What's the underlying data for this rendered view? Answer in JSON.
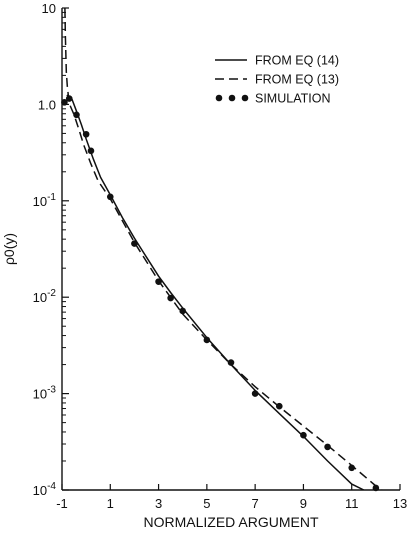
{
  "chart_data": {
    "type": "line",
    "xlabel": "NORMALIZED ARGUMENT",
    "ylabel": "ρ0(y)",
    "xlim": [
      -1,
      13
    ],
    "ylim": [
      0.0001,
      10
    ],
    "y_scale": "log",
    "grid": false,
    "legend_position": "top-right",
    "x_ticks": [
      {
        "value": -1,
        "label": "-1"
      },
      {
        "value": 1,
        "label": "1"
      },
      {
        "value": 3,
        "label": "3"
      },
      {
        "value": 5,
        "label": "5"
      },
      {
        "value": 7,
        "label": "7"
      },
      {
        "value": 9,
        "label": "9"
      },
      {
        "value": 11,
        "label": "11"
      },
      {
        "value": 13,
        "label": "13"
      }
    ],
    "y_ticks": [
      {
        "value": 10,
        "label": "10"
      },
      {
        "value": 1,
        "label": "1.0"
      },
      {
        "value": 0.1,
        "label": "10-1"
      },
      {
        "value": 0.01,
        "label": "10-2"
      },
      {
        "value": 0.001,
        "label": "10-3"
      },
      {
        "value": 0.0001,
        "label": "10-4"
      }
    ],
    "series": [
      {
        "name": "FROM EQ (14)",
        "style": "solid",
        "x": [
          -0.8,
          -0.6,
          -0.4,
          -0.2,
          0,
          0.3,
          0.6,
          1,
          1.5,
          2,
          2.5,
          3,
          3.5,
          4,
          5,
          6,
          7,
          8,
          9,
          10,
          11,
          11.5
        ],
        "y": [
          1.25,
          1.15,
          0.85,
          0.62,
          0.44,
          0.27,
          0.175,
          0.115,
          0.067,
          0.041,
          0.026,
          0.0165,
          0.0112,
          0.0077,
          0.0038,
          0.002,
          0.00108,
          0.00062,
          0.00036,
          0.0002,
          0.000115,
          0.0001
        ]
      },
      {
        "name": "FROM EQ (13)",
        "style": "dashed",
        "x": [
          -0.88,
          -0.86,
          -0.84,
          -0.82,
          -0.78,
          -0.72,
          -0.65,
          -0.5,
          -0.3,
          -0.1,
          0.2,
          0.5,
          1,
          1.5,
          2,
          3,
          4,
          5,
          6,
          7,
          8,
          9,
          10,
          11,
          12,
          12.5
        ],
        "y": [
          10,
          5,
          3.2,
          2.2,
          1.55,
          1.12,
          0.95,
          0.78,
          0.55,
          0.38,
          0.24,
          0.16,
          0.105,
          0.062,
          0.037,
          0.0148,
          0.0067,
          0.0036,
          0.002,
          0.00118,
          0.00073,
          0.00046,
          0.00029,
          0.00018,
          0.00011,
          9e-05
        ]
      },
      {
        "name": "SIMULATION",
        "style": "dots",
        "x": [
          -0.9,
          -0.7,
          -0.4,
          0,
          0.2,
          1,
          2,
          3,
          3.5,
          4,
          5,
          6,
          7,
          8,
          9,
          10,
          11,
          12
        ],
        "y": [
          1.05,
          1.15,
          0.78,
          0.49,
          0.33,
          0.11,
          0.036,
          0.0145,
          0.0098,
          0.0072,
          0.0036,
          0.0021,
          0.001,
          0.00074,
          0.00037,
          0.00028,
          0.00017,
          0.000105
        ]
      }
    ]
  }
}
